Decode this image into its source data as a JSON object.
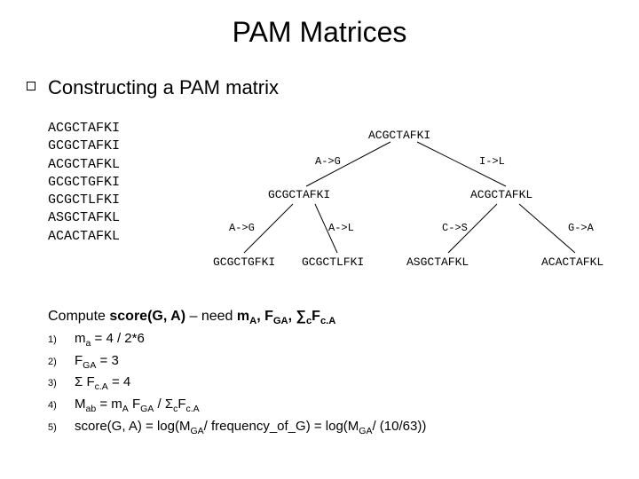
{
  "title": "PAM Matrices",
  "subtitle": "Constructing a PAM matrix",
  "sequences": [
    "ACGCTAFKI",
    "GCGCTAFKI",
    "ACGCTAFKL",
    "GCGCTGFKI",
    "GCGCTLFKI",
    "ASGCTAFKL",
    "ACACTAFKL"
  ],
  "tree": {
    "root": "ACGCTAFKI",
    "edge_l1_left": "A->G",
    "edge_l1_right": "I->L",
    "node_l2_left": "GCGCTAFKI",
    "node_l2_right": "ACGCTAFKL",
    "edge_l2_a": "A->G",
    "edge_l2_b": "A->L",
    "edge_l2_c": "C->S",
    "edge_l2_d": "G->A",
    "leaf_a": "GCGCTGFKI",
    "leaf_b": "GCGCTLFKI",
    "leaf_c": "ASGCTAFKL",
    "leaf_d": "ACACTAFKL"
  },
  "compute": {
    "head_prefix": "Compute ",
    "head_bold1": "score(G, A)",
    "head_mid": " – need ",
    "head_bold2_html": "m<sub>A</sub>, F<sub>GA</sub>, ∑<sub>c</sub>F<sub>c.A</sub>",
    "items": [
      {
        "n": "1)",
        "html": "m<sub>a</sub> = 4 / 2*6"
      },
      {
        "n": "2)",
        "html": "F<sub>GA</sub> = 3"
      },
      {
        "n": "3)",
        "html": "Σ F<sub>c.A</sub> = 4"
      },
      {
        "n": "4)",
        "html": "M<sub>ab</sub> = m<sub>A</sub> F<sub>GA</sub> / Σ<sub>c</sub>F<sub>c.A</sub>"
      },
      {
        "n": "5)",
        "html": "score(G, A) = log(M<sub>GA</sub>/ frequency_of_G) = log(M<sub>GA</sub>/ (10/63))"
      }
    ]
  },
  "colors": {
    "text": "#000000",
    "background": "#ffffff",
    "line": "#000000"
  }
}
